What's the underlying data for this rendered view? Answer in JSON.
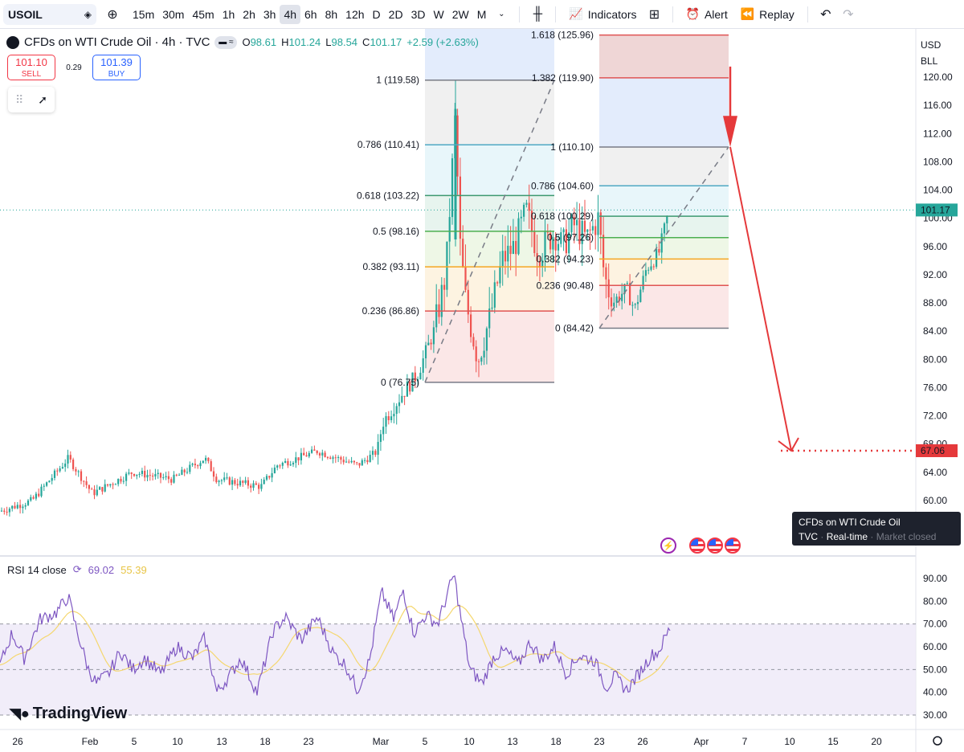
{
  "toolbar": {
    "symbol": "USOIL",
    "timeframes": [
      "15m",
      "30m",
      "45m",
      "1h",
      "2h",
      "3h",
      "4h",
      "6h",
      "8h",
      "12h",
      "D",
      "2D",
      "3D",
      "W",
      "2W",
      "M"
    ],
    "active_timeframe": "4h",
    "indicators_label": "Indicators",
    "alert_label": "Alert",
    "replay_label": "Replay"
  },
  "legend": {
    "title": "CFDs on WTI Crude Oil · 4h · TVC",
    "o_label": "O",
    "o_value": "98.61",
    "h_label": "H",
    "h_value": "101.24",
    "l_label": "L",
    "l_value": "98.54",
    "c_label": "C",
    "c_value": "101.17",
    "change": "+2.59 (+2.63%)"
  },
  "trade": {
    "sell_price": "101.10",
    "sell_label": "SELL",
    "spread": "0.29",
    "buy_price": "101.39",
    "buy_label": "BUY"
  },
  "price_axis": {
    "currency": "USD",
    "unit": "BLL",
    "ticks": [
      "120.00",
      "116.00",
      "112.00",
      "108.00",
      "104.00",
      "100.00",
      "96.00",
      "92.00",
      "88.00",
      "84.00",
      "80.00",
      "76.00",
      "72.00",
      "68.00",
      "64.00",
      "60.00"
    ],
    "current_price_label": "101.17",
    "target_price_label": "67.06"
  },
  "time_axis": {
    "ticks": [
      "26",
      "Feb",
      "5",
      "10",
      "13",
      "18",
      "23",
      "Mar",
      "5",
      "10",
      "13",
      "18",
      "23",
      "26",
      "Apr",
      "7",
      "10",
      "15",
      "20"
    ]
  },
  "fib1": {
    "levels": [
      {
        "label": "1 (119.58)",
        "value": 119.58,
        "color": "#787b86"
      },
      {
        "label": "0.786 (110.41)",
        "value": 110.41,
        "color": "#4fa9c4"
      },
      {
        "label": "0.618 (103.22)",
        "value": 103.22,
        "color": "#3d9970"
      },
      {
        "label": "0.5 (98.16)",
        "value": 98.16,
        "color": "#4caf50"
      },
      {
        "label": "0.382 (93.11)",
        "value": 93.11,
        "color": "#f5a623"
      },
      {
        "label": "0.236 (86.86)",
        "value": 86.86,
        "color": "#e05454"
      },
      {
        "label": "0 (76.75)",
        "value": 76.75,
        "color": "#787b86"
      }
    ]
  },
  "fib2": {
    "levels": [
      {
        "label": "1.618 (125.96)",
        "value": 125.96,
        "color": "#e05454"
      },
      {
        "label": "1.382 (119.90)",
        "value": 119.9,
        "color": "#e05454"
      },
      {
        "label": "1 (110.10)",
        "value": 110.1,
        "color": "#787b86"
      },
      {
        "label": "0.786 (104.60)",
        "value": 104.6,
        "color": "#4fa9c4"
      },
      {
        "label": "0.618 (100.29)",
        "value": 100.29,
        "color": "#3d9970"
      },
      {
        "label": "0.5 (97.26)",
        "value": 97.26,
        "color": "#4caf50"
      },
      {
        "label": "0.382 (94.23)",
        "value": 94.23,
        "color": "#f5a623"
      },
      {
        "label": "0.236 (90.48)",
        "value": 90.48,
        "color": "#e05454"
      },
      {
        "label": "0 (84.42)",
        "value": 84.42,
        "color": "#787b86"
      }
    ]
  },
  "tooltip": {
    "title": "CFDs on WTI Crude Oil",
    "source": "TVC",
    "status": "Real-time",
    "market": "Market closed"
  },
  "rsi": {
    "label": "RSI 14 close",
    "value": "69.02",
    "ma_value": "55.39",
    "ticks": [
      "90.00",
      "80.00",
      "70.00",
      "60.00",
      "50.00",
      "40.00",
      "30.00"
    ]
  },
  "watermark": "TradingView",
  "colors": {
    "up": "#26a69a",
    "down": "#ef5350",
    "accent": "#2962ff",
    "arrow": "#e5393b",
    "rsi_line": "#7e57c2",
    "rsi_ma": "#f5d76e"
  },
  "chart_data": {
    "type": "candlestick",
    "price_range": [
      56,
      128
    ],
    "close_approx": {
      "Jan 24": 59,
      "Jan 30": 65,
      "Feb 5": 62,
      "Feb 13": 65,
      "Feb 18": 63,
      "Feb 23": 66,
      "Mar 3": 66,
      "Mar 4": 72,
      "Mar 6": 77,
      "Mar 8": 92,
      "Mar 9": 115,
      "Mar 10": 90,
      "Mar 12": 93,
      "Mar 15": 99,
      "Mar 18": 96,
      "Mar 20": 98,
      "Mar 23": 100,
      "Mar 24": 88,
      "Mar 26": 91,
      "Mar 27": 95,
      "Mar 28": 101.17
    },
    "projection": {
      "from": 110.1,
      "to": 67.06
    },
    "rsi_range": [
      25,
      95
    ]
  }
}
